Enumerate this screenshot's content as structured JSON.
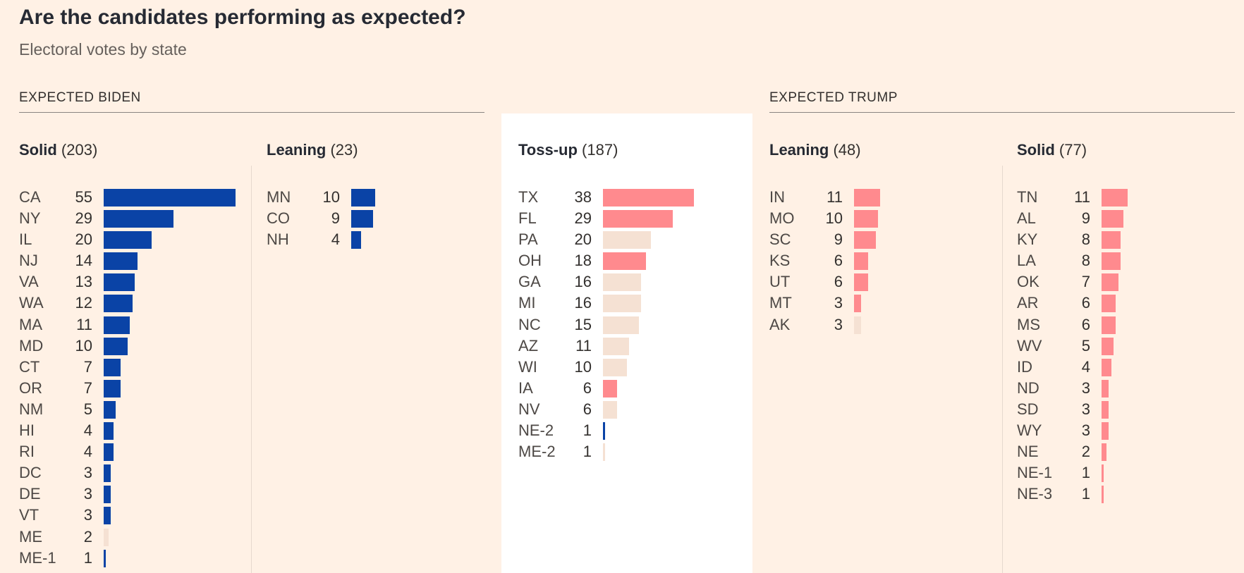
{
  "title": "Are the candidates performing as expected?",
  "subtitle": "Electoral votes by state",
  "groups": {
    "biden": "EXPECTED BIDEN",
    "trump": "EXPECTED TRUMP"
  },
  "colors": {
    "biden": "#0a43a6",
    "trump": "#ff8a8e",
    "undecided": "#f5e1d3",
    "background": "#fff1e5",
    "tossup_background": "#ffffff"
  },
  "chart_data": {
    "type": "bar",
    "orientation": "horizontal",
    "scale_max": 55,
    "columns": [
      {
        "name": "Solid",
        "total": "(203)",
        "group": "biden",
        "rows": [
          {
            "state": "CA",
            "votes": 55,
            "status": "biden"
          },
          {
            "state": "NY",
            "votes": 29,
            "status": "biden"
          },
          {
            "state": "IL",
            "votes": 20,
            "status": "biden"
          },
          {
            "state": "NJ",
            "votes": 14,
            "status": "biden"
          },
          {
            "state": "VA",
            "votes": 13,
            "status": "biden"
          },
          {
            "state": "WA",
            "votes": 12,
            "status": "biden"
          },
          {
            "state": "MA",
            "votes": 11,
            "status": "biden"
          },
          {
            "state": "MD",
            "votes": 10,
            "status": "biden"
          },
          {
            "state": "CT",
            "votes": 7,
            "status": "biden"
          },
          {
            "state": "OR",
            "votes": 7,
            "status": "biden"
          },
          {
            "state": "NM",
            "votes": 5,
            "status": "biden"
          },
          {
            "state": "HI",
            "votes": 4,
            "status": "biden"
          },
          {
            "state": "RI",
            "votes": 4,
            "status": "biden"
          },
          {
            "state": "DC",
            "votes": 3,
            "status": "biden"
          },
          {
            "state": "DE",
            "votes": 3,
            "status": "biden"
          },
          {
            "state": "VT",
            "votes": 3,
            "status": "biden"
          },
          {
            "state": "ME",
            "votes": 2,
            "status": "undecided"
          },
          {
            "state": "ME-1",
            "votes": 1,
            "status": "biden"
          }
        ]
      },
      {
        "name": "Leaning",
        "total": "(23)",
        "group": "biden",
        "rows": [
          {
            "state": "MN",
            "votes": 10,
            "status": "biden"
          },
          {
            "state": "CO",
            "votes": 9,
            "status": "biden"
          },
          {
            "state": "NH",
            "votes": 4,
            "status": "biden"
          }
        ]
      },
      {
        "name": "Toss-up",
        "total": "(187)",
        "group": "tossup",
        "rows": [
          {
            "state": "TX",
            "votes": 38,
            "status": "trump"
          },
          {
            "state": "FL",
            "votes": 29,
            "status": "trump"
          },
          {
            "state": "PA",
            "votes": 20,
            "status": "undecided"
          },
          {
            "state": "OH",
            "votes": 18,
            "status": "trump"
          },
          {
            "state": "GA",
            "votes": 16,
            "status": "undecided"
          },
          {
            "state": "MI",
            "votes": 16,
            "status": "undecided"
          },
          {
            "state": "NC",
            "votes": 15,
            "status": "undecided"
          },
          {
            "state": "AZ",
            "votes": 11,
            "status": "undecided"
          },
          {
            "state": "WI",
            "votes": 10,
            "status": "undecided"
          },
          {
            "state": "IA",
            "votes": 6,
            "status": "trump"
          },
          {
            "state": "NV",
            "votes": 6,
            "status": "undecided"
          },
          {
            "state": "NE-2",
            "votes": 1,
            "status": "biden"
          },
          {
            "state": "ME-2",
            "votes": 1,
            "status": "undecided"
          }
        ]
      },
      {
        "name": "Leaning",
        "total": "(48)",
        "group": "trump",
        "rows": [
          {
            "state": "IN",
            "votes": 11,
            "status": "trump"
          },
          {
            "state": "MO",
            "votes": 10,
            "status": "trump"
          },
          {
            "state": "SC",
            "votes": 9,
            "status": "trump"
          },
          {
            "state": "KS",
            "votes": 6,
            "status": "trump"
          },
          {
            "state": "UT",
            "votes": 6,
            "status": "trump"
          },
          {
            "state": "MT",
            "votes": 3,
            "status": "trump"
          },
          {
            "state": "AK",
            "votes": 3,
            "status": "undecided"
          }
        ]
      },
      {
        "name": "Solid",
        "total": "(77)",
        "group": "trump",
        "rows": [
          {
            "state": "TN",
            "votes": 11,
            "status": "trump"
          },
          {
            "state": "AL",
            "votes": 9,
            "status": "trump"
          },
          {
            "state": "KY",
            "votes": 8,
            "status": "trump"
          },
          {
            "state": "LA",
            "votes": 8,
            "status": "trump"
          },
          {
            "state": "OK",
            "votes": 7,
            "status": "trump"
          },
          {
            "state": "AR",
            "votes": 6,
            "status": "trump"
          },
          {
            "state": "MS",
            "votes": 6,
            "status": "trump"
          },
          {
            "state": "WV",
            "votes": 5,
            "status": "trump"
          },
          {
            "state": "ID",
            "votes": 4,
            "status": "trump"
          },
          {
            "state": "ND",
            "votes": 3,
            "status": "trump"
          },
          {
            "state": "SD",
            "votes": 3,
            "status": "trump"
          },
          {
            "state": "WY",
            "votes": 3,
            "status": "trump"
          },
          {
            "state": "NE",
            "votes": 2,
            "status": "trump"
          },
          {
            "state": "NE-1",
            "votes": 1,
            "status": "trump"
          },
          {
            "state": "NE-3",
            "votes": 1,
            "status": "trump"
          }
        ]
      }
    ]
  }
}
